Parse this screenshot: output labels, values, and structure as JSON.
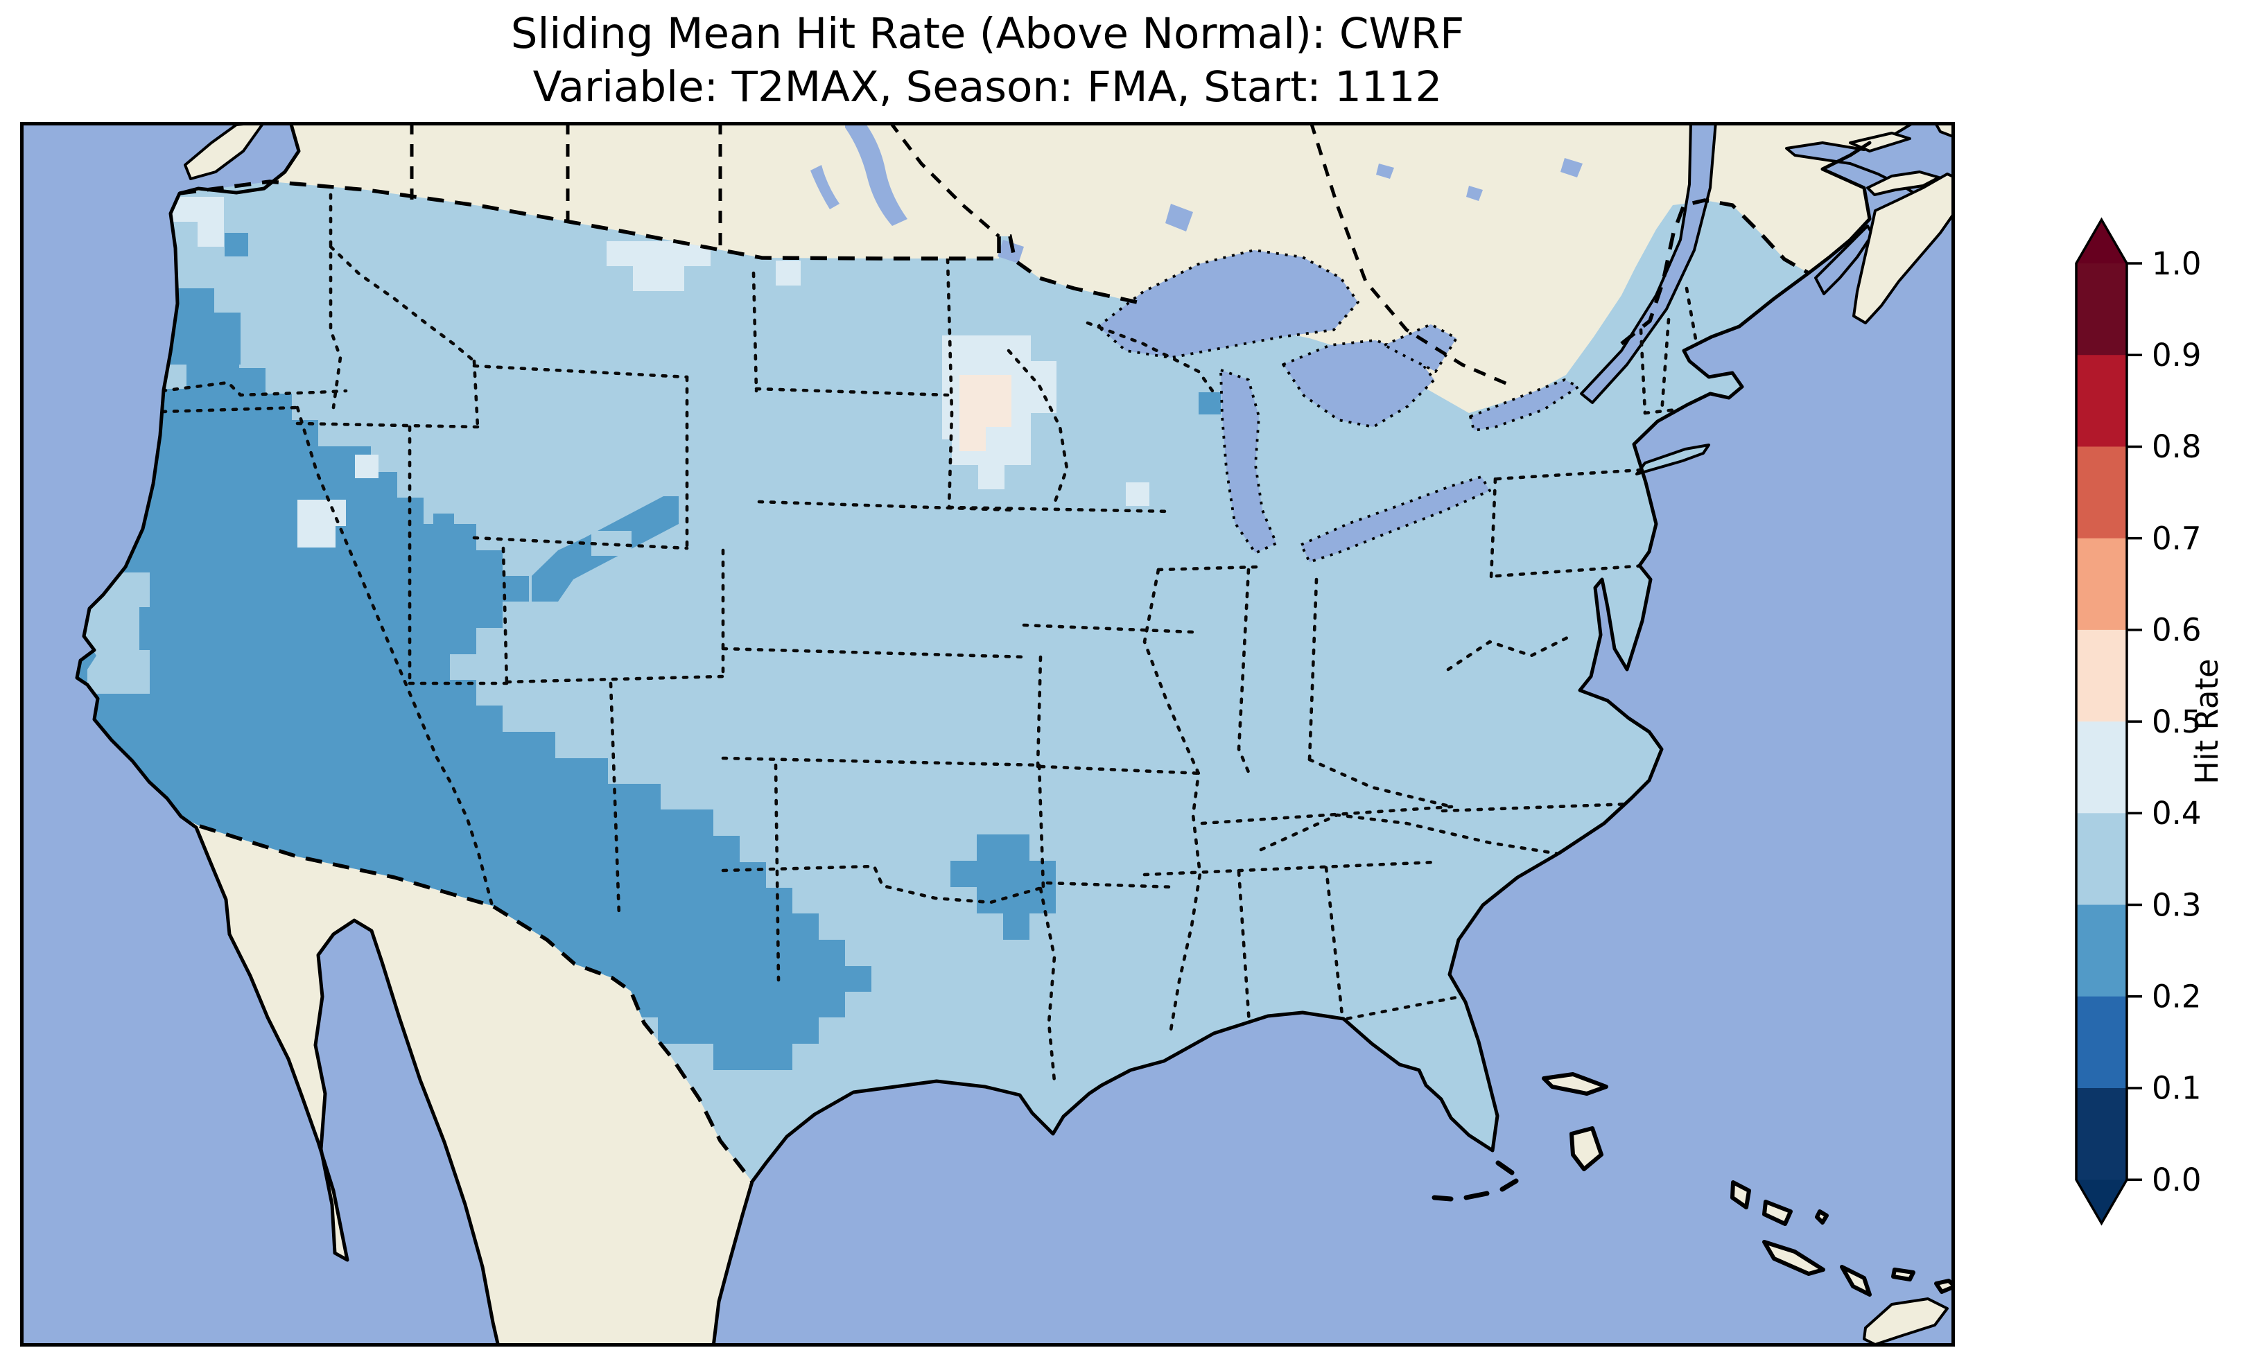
{
  "title": {
    "line1": "Sliding Mean Hit Rate (Above Normal): CWRF",
    "line2": "Variable: T2MAX, Season: FMA, Start: 1112"
  },
  "colorbar": {
    "label": "Hit Rate",
    "orientation": "vertical",
    "extend": "both",
    "ticks": [
      "1.0",
      "0.9",
      "0.8",
      "0.7",
      "0.6",
      "0.5",
      "0.4",
      "0.3",
      "0.2",
      "0.1",
      "0.0"
    ],
    "bins": [
      {
        "from": 0.9,
        "to": 1.0,
        "color": "#6b0a23"
      },
      {
        "from": 0.8,
        "to": 0.9,
        "color": "#b2182b"
      },
      {
        "from": 0.7,
        "to": 0.8,
        "color": "#d6604d"
      },
      {
        "from": 0.6,
        "to": 0.7,
        "color": "#f4a582"
      },
      {
        "from": 0.5,
        "to": 0.6,
        "color": "#fbe0ce"
      },
      {
        "from": 0.4,
        "to": 0.5,
        "color": "#dcebf3"
      },
      {
        "from": 0.3,
        "to": 0.4,
        "color": "#aacfe3"
      },
      {
        "from": 0.2,
        "to": 0.3,
        "color": "#529ac7"
      },
      {
        "from": 0.1,
        "to": 0.2,
        "color": "#2769ae"
      },
      {
        "from": 0.0,
        "to": 0.1,
        "color": "#0c3668"
      }
    ],
    "extend_above_color": "#67001f",
    "extend_below_color": "#053061"
  },
  "map": {
    "projection_style": "Lambert-conformal-like view of the contiguous United States",
    "ocean_color": "#93aedd",
    "land_color": "#f0eddc",
    "coastline_color": "#000000",
    "value_colors": {
      "hr_0_2_to_0_3": "#529ac7",
      "hr_0_3_to_0_4": "#aacfe3",
      "hr_0_4_to_0_5": "#dcebf3",
      "hr_0_5_to_0_6": "#f7e9dd"
    },
    "border_styles": {
      "coastline": "solid black",
      "country_borders": "dashed black",
      "state_borders": "dotted black",
      "lake_shores": "dotted black"
    }
  },
  "chart_data": {
    "type": "heatmap",
    "title": "Sliding Mean Hit Rate (Above Normal): CWRF",
    "subtitle": "Variable: T2MAX, Season: FMA, Start: 1112",
    "model": "CWRF",
    "category": "Above Normal",
    "variable": "T2MAX",
    "season": "FMA",
    "start": "1112",
    "colorbar_label": "Hit Rate",
    "value_range": [
      0.0,
      1.0
    ],
    "bin_width": 0.1,
    "legend_position": "right",
    "regions": [
      {
        "area": "Western Washington / Cascades patch",
        "hit_rate": "0.2-0.3"
      },
      {
        "area": "California, Nevada, Arizona, Utah, New Mexico, west Texas (large Southwest block)",
        "hit_rate": "0.2-0.3"
      },
      {
        "area": "Colorado Rockies arm",
        "hit_rate": "0.2-0.3"
      },
      {
        "area": "Oklahoma / Texas panhandle bulge",
        "hit_rate": "0.2-0.3"
      },
      {
        "area": "East-central Texas blob",
        "hit_rate": "0.2-0.3"
      },
      {
        "area": "Central California valley patch",
        "hit_rate": "0.3-0.4"
      },
      {
        "area": "Minnesota / eastern North Dakota blob",
        "hit_rate": "0.4-0.5 with 0.5-0.6 core"
      },
      {
        "area": "Montana border cells, Puget lowland, NE Nevada, Salt Lake area, Wisconsin cell, Florida Keys cells",
        "hit_rate": "0.4-0.5"
      },
      {
        "area": "Most of the central, southern and eastern U.S. including Texas east, Gulf states, Midwest, Northeast and Florida",
        "hit_rate": "0.3-0.4"
      }
    ]
  }
}
